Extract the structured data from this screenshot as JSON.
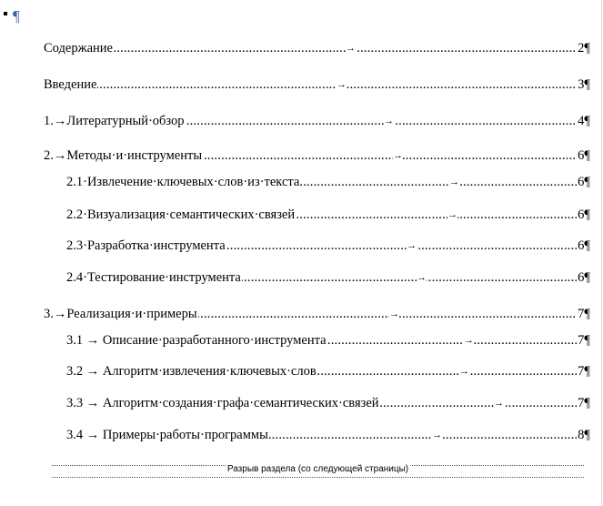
{
  "document": {
    "top_paragraph_mark": "¶",
    "toc_entries": [
      {
        "label": "Содержание",
        "page": "2¶"
      },
      {
        "label": "Введение ",
        "page": "3¶"
      },
      {
        "label": "1.→Литературный·обзор ",
        "page": "4¶"
      },
      {
        "label": "2.→Методы·и·инструменты ",
        "page": "6¶"
      },
      {
        "label": "2.1·Извлечение·ключевых·слов·из·текста ",
        "page": "6¶"
      },
      {
        "label": "2.2·Визуализация·семантических·связей ",
        "page": "6¶"
      },
      {
        "label": "2.3·Разработка·инструмента ",
        "page": "6¶"
      },
      {
        "label": "2.4·Тестирование·инструмента ",
        "page": "6¶"
      },
      {
        "label": "3.→Реализация·и·примеры ",
        "page": "7¶"
      },
      {
        "label": "3.1 →  Описание·разработанного·инструмента",
        "page": "7¶"
      },
      {
        "label": "3.2 →  Алгоритм·извлечения·ключевых·слов",
        "page": "7¶"
      },
      {
        "label": "3.3 →  Алгоритм·создания·графа·семантических·связей ",
        "page": "7¶"
      },
      {
        "label": "3.4 →  Примеры·работы·программы ",
        "page": "8¶"
      }
    ],
    "section_break_label": "Разрыв раздела (со следующей страницы)"
  }
}
